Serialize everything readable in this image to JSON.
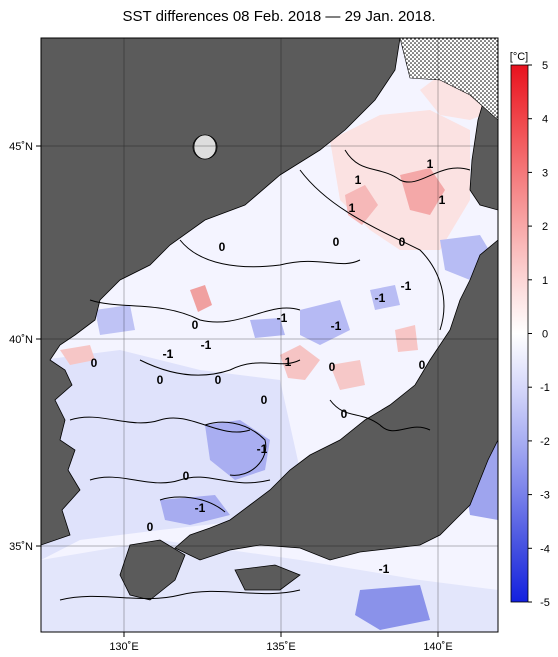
{
  "title": "SST differences 08 Feb. 2018 — 29 Jan. 2018.",
  "axes": {
    "lat_labels": [
      "45˚N",
      "40˚N",
      "35˚N"
    ],
    "lon_labels": [
      "130˚E",
      "135˚E",
      "140˚E"
    ]
  },
  "colorbar": {
    "unit": "[°C]",
    "ticks": [
      "5",
      "4",
      "3",
      "2",
      "1",
      "0",
      "-1",
      "-2",
      "-3",
      "-4",
      "-5"
    ],
    "range": [
      -5,
      5
    ]
  },
  "contour_labels": [
    {
      "text": "1"
    },
    {
      "text": "1"
    },
    {
      "text": "1"
    },
    {
      "text": "1"
    },
    {
      "text": "0"
    },
    {
      "text": "0"
    },
    {
      "text": "0"
    },
    {
      "text": "0"
    },
    {
      "text": "-1"
    },
    {
      "text": "-1"
    },
    {
      "text": "-1"
    },
    {
      "text": "-1"
    },
    {
      "text": "-1"
    },
    {
      "text": "-1"
    },
    {
      "text": "-1"
    },
    {
      "text": "0"
    },
    {
      "text": "0"
    },
    {
      "text": "0"
    },
    {
      "text": "0"
    },
    {
      "text": "1"
    },
    {
      "text": "0"
    },
    {
      "text": "0"
    },
    {
      "text": "0"
    },
    {
      "text": "0"
    },
    {
      "text": "-1"
    },
    {
      "text": "-1"
    },
    {
      "text": "0"
    },
    {
      "text": "-1"
    }
  ],
  "colors": {
    "land": "#5b5b5b",
    "sea_neutral": "#ffffff",
    "warm": "#ff0000",
    "cold": "#0000ff"
  }
}
